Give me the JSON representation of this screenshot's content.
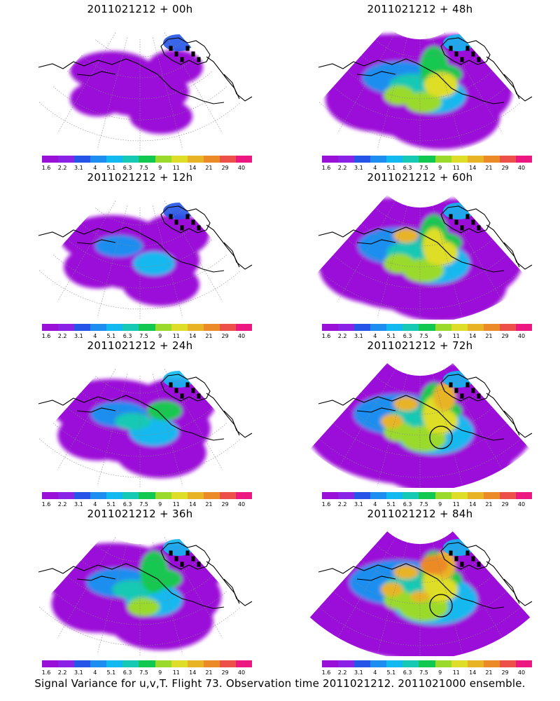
{
  "panels": [
    {
      "title": "2011021212 + 00h",
      "stage": 0,
      "circle": false
    },
    {
      "title": "2011021212 + 48h",
      "stage": 4,
      "circle": false
    },
    {
      "title": "2011021212 + 12h",
      "stage": 1,
      "circle": false
    },
    {
      "title": "2011021212 + 60h",
      "stage": 5,
      "circle": false
    },
    {
      "title": "2011021212 + 24h",
      "stage": 2,
      "circle": false
    },
    {
      "title": "2011021212 + 72h",
      "stage": 6,
      "circle": true
    },
    {
      "title": "2011021212 + 36h",
      "stage": 3,
      "circle": false
    },
    {
      "title": "2011021212 + 84h",
      "stage": 7,
      "circle": true
    }
  ],
  "colorbar": {
    "labels": [
      "1.6",
      "2.2",
      "3.1",
      "4",
      "5.1",
      "6.3",
      "7.5",
      "9",
      "11",
      "14",
      "21",
      "29",
      "40"
    ],
    "colors": [
      "#9b10d8",
      "#8a22e6",
      "#2454e8",
      "#1c8ef0",
      "#12b8f0",
      "#16c9b4",
      "#12c850",
      "#9ada2a",
      "#dede28",
      "#e8b426",
      "#ec8a28",
      "#ec5048",
      "#ec1880"
    ]
  },
  "caption": "Signal Variance for u,v,T. Flight 73. Observation time 2011021212. 2011021000 ensemble."
}
